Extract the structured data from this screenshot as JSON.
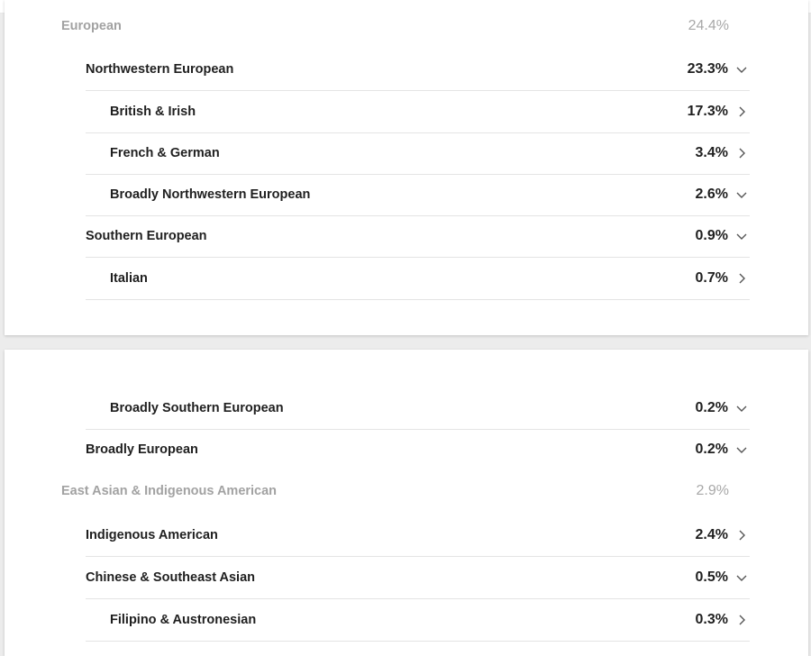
{
  "card1": {
    "rows": [
      {
        "label": "European",
        "percent": "24.4%",
        "icon": ""
      },
      {
        "label": "Northwestern European",
        "percent": "23.3%",
        "icon": "chevron-down-icon"
      },
      {
        "label": "British & Irish",
        "percent": "17.3%",
        "icon": "chevron-right-icon"
      },
      {
        "label": "French & German",
        "percent": "3.4%",
        "icon": "chevron-right-icon"
      },
      {
        "label": "Broadly Northwestern European",
        "percent": "2.6%",
        "icon": "chevron-down-icon"
      },
      {
        "label": "Southern European",
        "percent": "0.9%",
        "icon": "chevron-down-icon"
      },
      {
        "label": "Italian",
        "percent": "0.7%",
        "icon": "chevron-right-icon"
      }
    ]
  },
  "card2": {
    "rows": [
      {
        "label": "Broadly Southern European",
        "percent": "0.2%",
        "icon": "chevron-down-icon"
      },
      {
        "label": "Broadly European",
        "percent": "0.2%",
        "icon": "chevron-down-icon"
      },
      {
        "label": "East Asian & Indigenous American",
        "percent": "2.9%",
        "icon": ""
      },
      {
        "label": "Indigenous American",
        "percent": "2.4%",
        "icon": "chevron-right-icon"
      },
      {
        "label": "Chinese & Southeast Asian",
        "percent": "0.5%",
        "icon": "chevron-down-icon"
      },
      {
        "label": "Filipino & Austronesian",
        "percent": "0.3%",
        "icon": "chevron-right-icon"
      }
    ]
  }
}
